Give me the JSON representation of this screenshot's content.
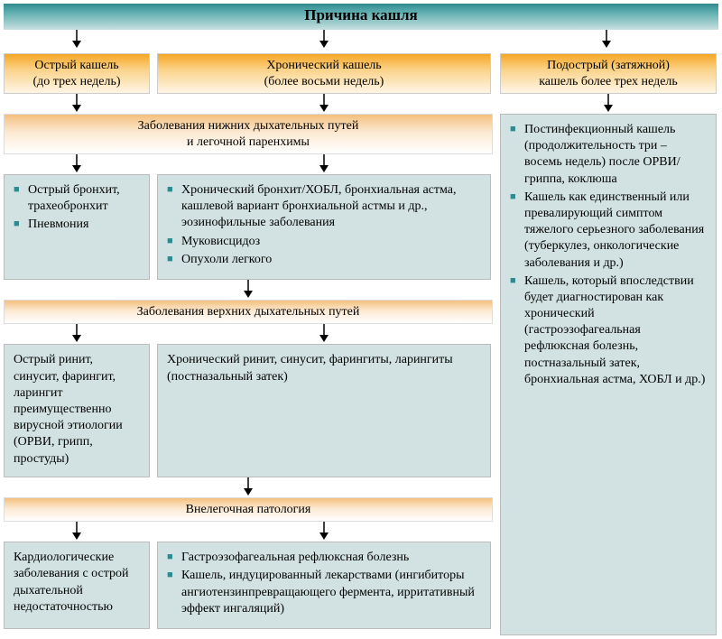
{
  "title": "Причина кашля",
  "branches": {
    "acute": "Острый кашель\n(до трех недель)",
    "chronic": "Хронический кашель\n(более восьми недель)",
    "subacute": "Подострый (затяжной)\nкашель более трех недель"
  },
  "sections": {
    "lower": "Заболевания нижних дыхательных путей\nи легочной паренхимы",
    "upper": "Заболевания верхних дыхательных путей",
    "extra": "Внелегочная патология"
  },
  "lower_acute": [
    "Острый бронхит, трахеобронхит",
    "Пневмония"
  ],
  "lower_chronic": [
    "Хронический бронхит/ХОБЛ, бронхиальная астма, кашлевой вариант бронхиальной астмы и др., эозинофильные заболевания",
    "Муковисцидоз",
    "Опухоли легкого"
  ],
  "upper_acute": "Острый ринит, синусит, фарингит, ларингит преимущественно вирусной этиологии (ОРВИ, грипп, простуды)",
  "upper_chronic": "Хронический ринит, синусит, фарингиты, ларингиты\n(постназальный затек)",
  "extra_acute": "Кардиологические заболевания с острой дыхательной недостаточностью",
  "extra_chronic": [
    "Гастроэзофагеальная рефлюксная болезнь",
    "Кашель, индуцированный лекарствами (ингибиторы ангиотензинпревращающего фермента, ирритативный эффект ингаляций)"
  ],
  "subacute_items": [
    "Постинфекционный кашель (продолжительность три – восемь недель) после ОРВИ/гриппа, коклюша",
    "Кашель как единственный или превалирующий симптом тяжелого серьезного заболевания (туберкулез, онкологические заболевания и др.)",
    "Кашель, который впоследствии будет диагностирован как хронический (гастроэзофагеальная рефлюксная болезнь, постназальный затек, бронхиальная астма, ХОБЛ и др.)"
  ],
  "colors": {
    "teal": "#2e8a8e",
    "bullet": "#2e8a8e",
    "box_bg": "#d2e2e2",
    "orange_top": "#f6a623",
    "section_top": "#f3c07c"
  },
  "arrow": {
    "stroke": "#000000",
    "width": 14,
    "height": 20
  }
}
